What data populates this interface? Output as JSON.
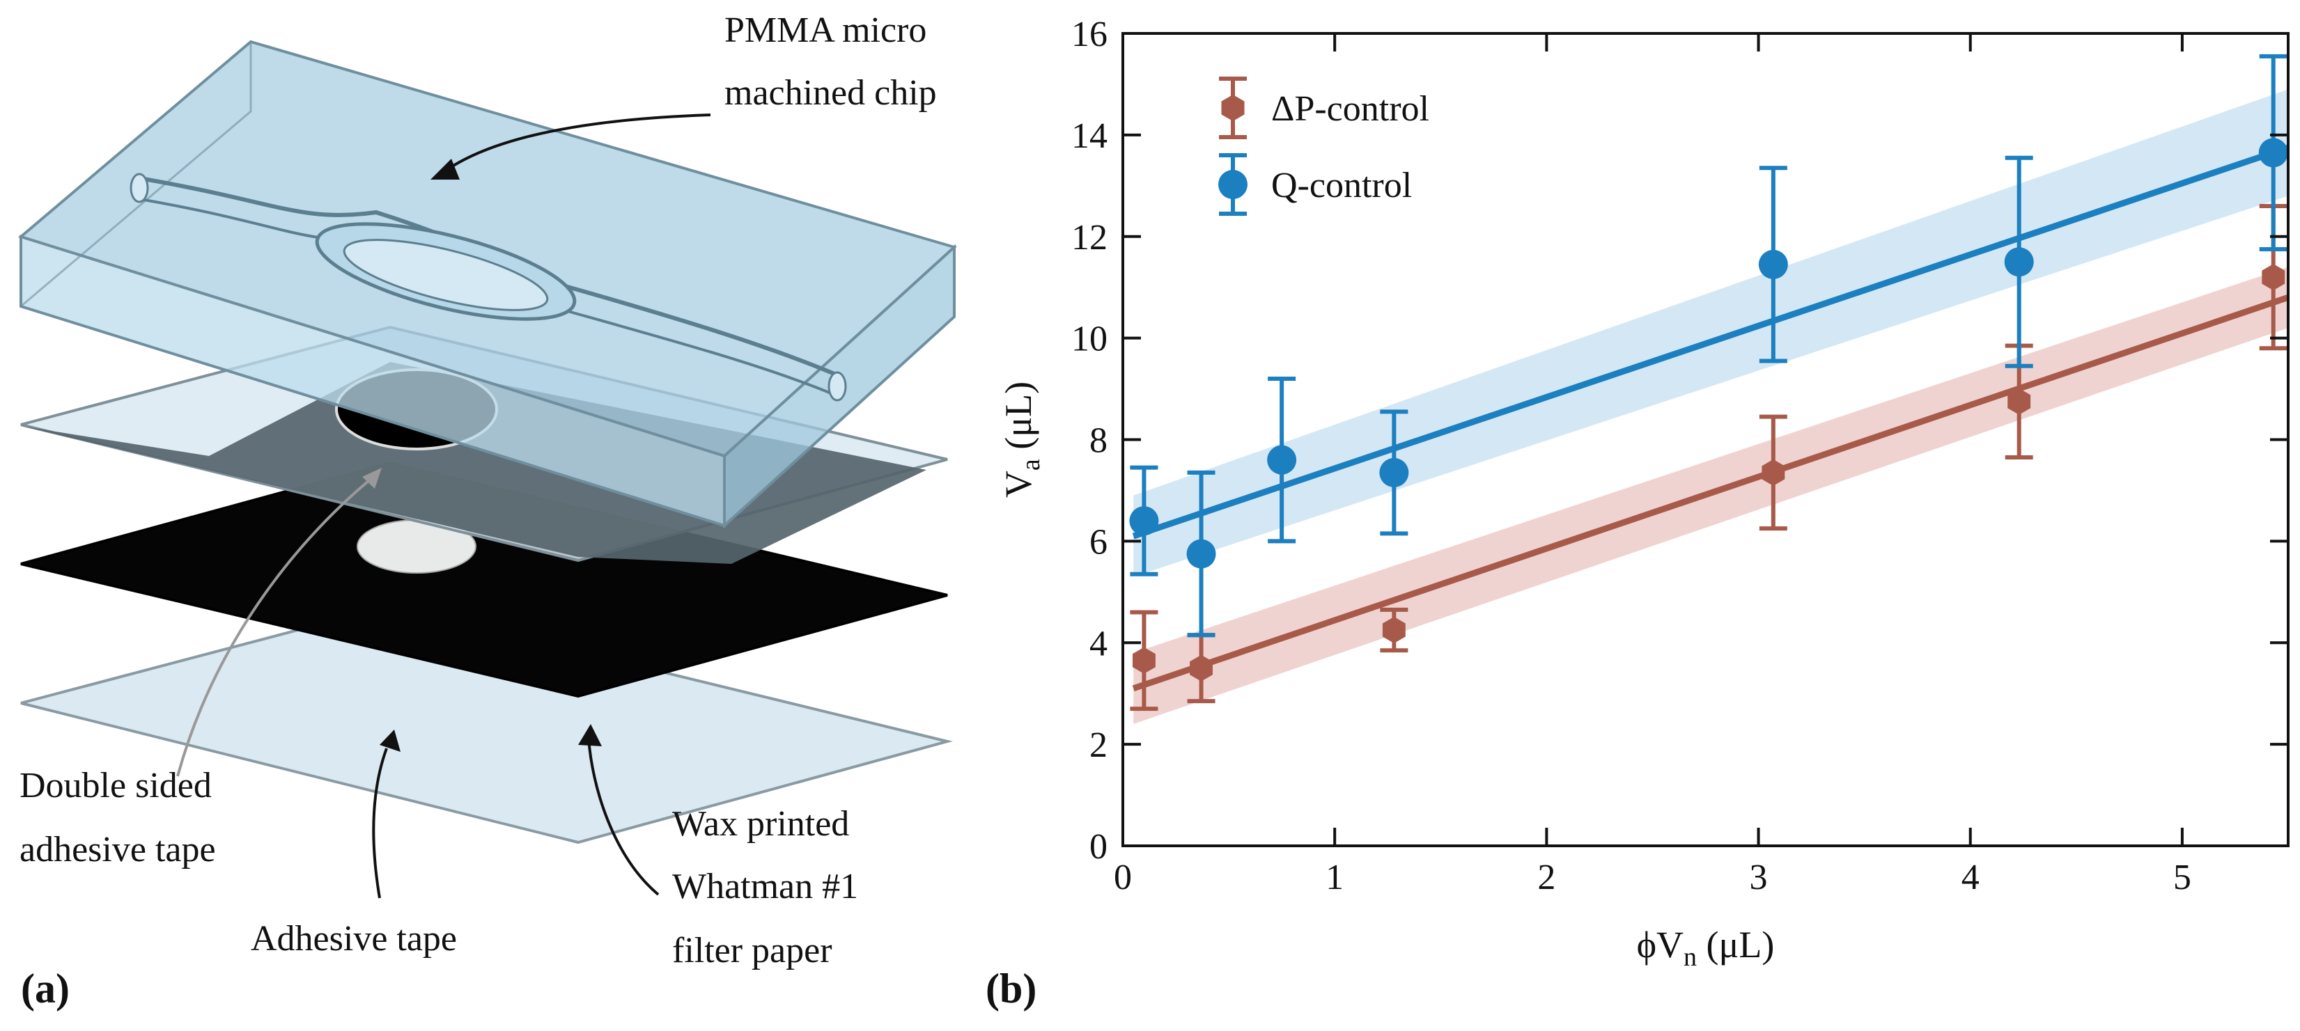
{
  "panel_a": {
    "panel_label": "(a)",
    "labels": {
      "chip_line1": "PMMA micro",
      "chip_line2": "machined chip",
      "dst_line1": "Double sided",
      "dst_line2": "adhesive tape",
      "tape": "Adhesive tape",
      "paper_line1": "Wax printed",
      "paper_line2": "Whatman #1",
      "paper_line3": "filter paper"
    },
    "colors": {
      "chip": "#a9cfe3",
      "tape": "#dbe9f2",
      "dst": "#5f6f77",
      "paper": "#050505"
    }
  },
  "panel_b": {
    "panel_label": "(b)"
  },
  "chart_data": {
    "type": "scatter",
    "xlabel": {
      "main": "ϕV",
      "sub": "n",
      "unit": " (μL)"
    },
    "ylabel": {
      "main": "V",
      "sub": "a",
      "unit": " (μL)"
    },
    "xlim": [
      0,
      5.5
    ],
    "ylim": [
      0,
      16
    ],
    "xticks": [
      0,
      1,
      2,
      3,
      4,
      5
    ],
    "yticks": [
      0,
      2,
      4,
      6,
      8,
      10,
      12,
      14,
      16
    ],
    "legend_position": "top-left",
    "series": [
      {
        "name": "ΔP-control",
        "color": "#a85a4a",
        "band_color": "#e9c4c0",
        "marker": "hexagon",
        "x": [
          0.1,
          0.37,
          1.28,
          3.07,
          4.23,
          5.43
        ],
        "y": [
          3.65,
          3.5,
          4.25,
          7.35,
          8.75,
          11.2
        ],
        "yerr": [
          0.95,
          0.65,
          0.4,
          1.1,
          1.1,
          1.4
        ],
        "fit": {
          "x": [
            0.05,
            5.5
          ],
          "y": [
            3.1,
            10.8
          ]
        },
        "band": {
          "lower": [
            2.4,
            10.2
          ],
          "upper": [
            3.8,
            11.4
          ]
        }
      },
      {
        "name": "Q-control",
        "color": "#1b7fc0",
        "band_color": "#c6dff0",
        "marker": "circle",
        "x": [
          0.1,
          0.37,
          0.75,
          1.28,
          3.07,
          4.23,
          5.43
        ],
        "y": [
          6.4,
          5.75,
          7.6,
          7.35,
          11.45,
          11.5,
          13.65
        ],
        "yerr": [
          1.05,
          1.6,
          1.6,
          1.2,
          1.9,
          2.05,
          1.9
        ],
        "fit": {
          "x": [
            0.05,
            5.5
          ],
          "y": [
            6.1,
            13.75
          ]
        },
        "band": {
          "lower": [
            5.3,
            12.8
          ],
          "upper": [
            6.9,
            14.9
          ]
        }
      }
    ]
  }
}
